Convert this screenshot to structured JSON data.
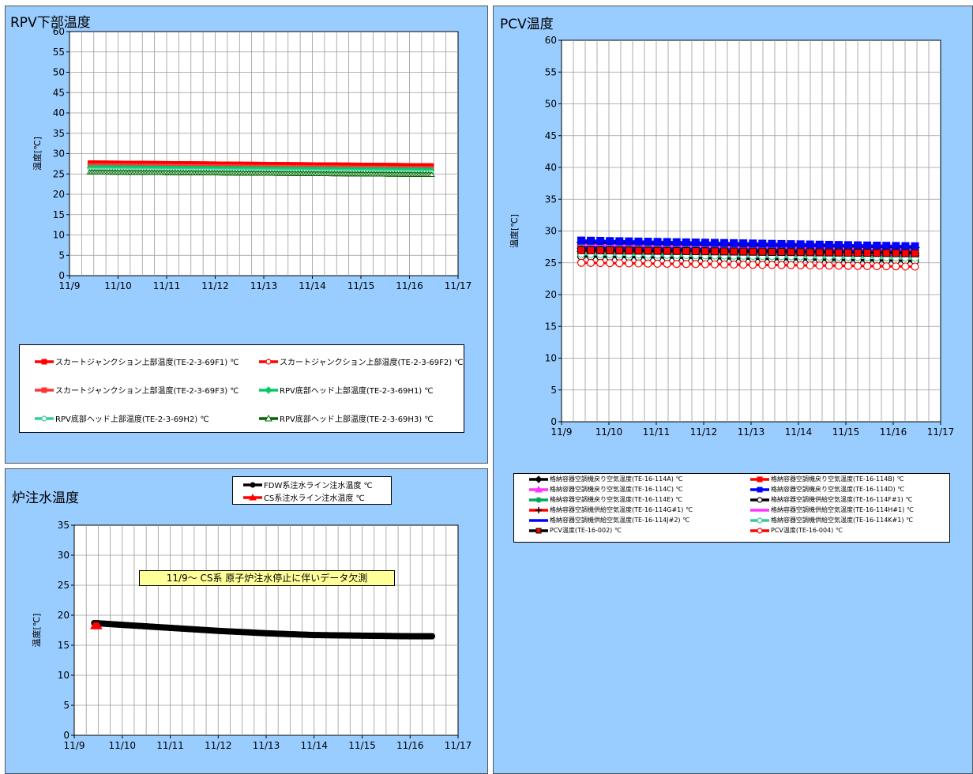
{
  "panels": {
    "rpv": {
      "title": "RPV下部温度"
    },
    "pcv": {
      "title": "PCV温度"
    },
    "inj": {
      "title": "炉注水温度"
    }
  },
  "chart_data": [
    {
      "type": "line",
      "title": "RPV下部温度",
      "ylabel": "温度[℃]",
      "xlabel": "",
      "ylim": [
        0,
        60
      ],
      "yticks": [
        0,
        5,
        10,
        15,
        20,
        25,
        30,
        35,
        40,
        45,
        50,
        55,
        60
      ],
      "xlim": [
        "11/9",
        "11/17"
      ],
      "xticks": [
        "11/9",
        "11/10",
        "11/11",
        "11/12",
        "11/13",
        "11/14",
        "11/15",
        "11/16",
        "11/17"
      ],
      "grid": true,
      "legend": "bottom",
      "series": [
        {
          "name": "スカートジャンクション上部温度(TE-2-3-69F1) ℃",
          "color": "#ff0000",
          "marker": "square-filled",
          "x": [
            "11/9 10:00",
            "11/16 11:00"
          ],
          "values": [
            27.8,
            27.1
          ]
        },
        {
          "name": "スカートジャンクション上部温度(TE-2-3-69F2) ℃",
          "color": "#ff0000",
          "marker": "circle-open",
          "x": [
            "11/9 10:00",
            "11/16 11:00"
          ],
          "values": [
            27.3,
            26.6
          ]
        },
        {
          "name": "スカートジャンクション上部温度(TE-2-3-69F3) ℃",
          "color": "#ff3333",
          "marker": "square-filled",
          "x": [
            "11/9 10:00",
            "11/16 11:00"
          ],
          "values": [
            26.9,
            26.3
          ]
        },
        {
          "name": "RPV底部ヘッド上部温度(TE-2-3-69H1) ℃",
          "color": "#00cc66",
          "marker": "diamond-filled",
          "x": [
            "11/9 10:00",
            "11/16 11:00"
          ],
          "values": [
            26.5,
            25.9
          ]
        },
        {
          "name": "RPV底部ヘッド上部温度(TE-2-3-69H2) ℃",
          "color": "#33cc99",
          "marker": "circle-open",
          "x": [
            "11/9 10:00",
            "11/16 11:00"
          ],
          "values": [
            26.1,
            25.5
          ]
        },
        {
          "name": "RPV底部ヘッド上部温度(TE-2-3-69H3) ℃",
          "color": "#006600",
          "marker": "triangle-open",
          "x": [
            "11/9 10:00",
            "11/16 11:00"
          ],
          "values": [
            25.4,
            24.8
          ]
        }
      ]
    },
    {
      "type": "line",
      "title": "PCV温度",
      "ylabel": "温度[℃]",
      "xlabel": "",
      "ylim": [
        0,
        60
      ],
      "yticks": [
        0,
        5,
        10,
        15,
        20,
        25,
        30,
        35,
        40,
        45,
        50,
        55,
        60
      ],
      "xlim": [
        "11/9",
        "11/17"
      ],
      "xticks": [
        "11/9",
        "11/10",
        "11/11",
        "11/12",
        "11/13",
        "11/14",
        "11/15",
        "11/16",
        "11/17"
      ],
      "grid": true,
      "legend": "bottom",
      "series": [
        {
          "name": "格納容器空調機戻り空気温度(TE-16-114A) ℃",
          "color": "#000000",
          "marker": "diamond-filled",
          "x": [
            "11/9 10:00",
            "11/16 11:00"
          ],
          "values": [
            28.2,
            27.4
          ]
        },
        {
          "name": "格納容器空調機戻り空気温度(TE-16-114B) ℃",
          "color": "#ff0000",
          "marker": "square-filled",
          "x": [
            "11/9 10:00",
            "11/16 11:00"
          ],
          "values": [
            27.5,
            26.8
          ]
        },
        {
          "name": "格納容器空調機戻り空気温度(TE-16-114C) ℃",
          "color": "#ff33ff",
          "marker": "triangle-filled",
          "x": [
            "11/9 10:00",
            "11/16 11:00"
          ],
          "values": [
            27.8,
            27.0
          ]
        },
        {
          "name": "格納容器空調機戻り空気温度(TE-16-114D) ℃",
          "color": "#0000ff",
          "marker": "square-filled",
          "x": [
            "11/9 10:00",
            "11/16 11:00"
          ],
          "values": [
            28.5,
            27.6
          ]
        },
        {
          "name": "格納容器空調機戻り空気温度(TE-16-114E) ℃",
          "color": "#00aa55",
          "marker": "circle-filled",
          "x": [
            "11/9 10:00",
            "11/16 11:00"
          ],
          "values": [
            27.2,
            26.5
          ]
        },
        {
          "name": "格納容器空調機供給空気温度(TE-16-114F#1) ℃",
          "color": "#000000",
          "marker": "circle-open",
          "x": [
            "11/9 10:00",
            "11/16 11:00"
          ],
          "values": [
            26.0,
            25.3
          ]
        },
        {
          "name": "格納容器空調機供給空気温度(TE-16-114G#1) ℃",
          "color": "#ff0000",
          "marker": "plus",
          "x": [
            "11/9 10:00",
            "11/16 11:00"
          ],
          "values": [
            26.8,
            26.1
          ]
        },
        {
          "name": "格納容器空調機供給空気温度(TE-16-114H#1) ℃",
          "color": "#ff33ff",
          "marker": "none",
          "x": [
            "11/9 10:00",
            "11/16 11:00"
          ],
          "values": [
            27.0,
            26.3
          ]
        },
        {
          "name": "格納容器空調機供給空気温度(TE-16-114J#2) ℃",
          "color": "#0000ff",
          "marker": "none",
          "x": [
            "11/9 10:00",
            "11/16 11:00"
          ],
          "values": [
            27.4,
            26.7
          ]
        },
        {
          "name": "格納容器空調機供給空気温度(TE-16-114K#1) ℃",
          "color": "#33cc99",
          "marker": "circle-open",
          "x": [
            "11/9 10:00",
            "11/16 11:00"
          ],
          "values": [
            26.4,
            25.8
          ]
        },
        {
          "name": "PCV温度(TE-16-002) ℃",
          "color": "#000000",
          "marker": "square-red",
          "x": [
            "11/9 10:00",
            "11/16 11:00"
          ],
          "values": [
            27.0,
            26.5
          ]
        },
        {
          "name": "PCV温度(TE-16-004) ℃",
          "color": "#ff0000",
          "marker": "circle-open",
          "x": [
            "11/9 10:00",
            "11/16 11:00"
          ],
          "values": [
            25.0,
            24.4
          ]
        }
      ]
    },
    {
      "type": "line",
      "title": "炉注水温度",
      "ylabel": "温度[℃]",
      "xlabel": "",
      "ylim": [
        0,
        35
      ],
      "yticks": [
        0,
        5,
        10,
        15,
        20,
        25,
        30,
        35
      ],
      "xlim": [
        "11/9",
        "11/17"
      ],
      "xticks": [
        "11/9",
        "11/10",
        "11/11",
        "11/12",
        "11/13",
        "11/14",
        "11/15",
        "11/16",
        "11/17"
      ],
      "grid": true,
      "legend": "top",
      "annotation": "11/9～ CS系 原子炉注水停止に伴いデータ欠測",
      "series": [
        {
          "name": "FDW系注水ライン注水温度 ℃",
          "color": "#000000",
          "marker": "circle-filled",
          "x": [
            "11/9 10:00",
            "11/10 0:00",
            "11/11 0:00",
            "11/12 0:00",
            "11/13 0:00",
            "11/14 0:00",
            "11/15 0:00",
            "11/16 0:00",
            "11/16 11:00"
          ],
          "values": [
            18.7,
            18.4,
            17.9,
            17.4,
            17.0,
            16.7,
            16.6,
            16.5,
            16.5
          ]
        },
        {
          "name": "CS系注水ライン注水温度 ℃",
          "color": "#ff0000",
          "marker": "triangle-filled",
          "x": [
            "11/9 10:00",
            "11/9 12:00"
          ],
          "values": [
            18.2,
            18.2
          ]
        }
      ]
    }
  ]
}
